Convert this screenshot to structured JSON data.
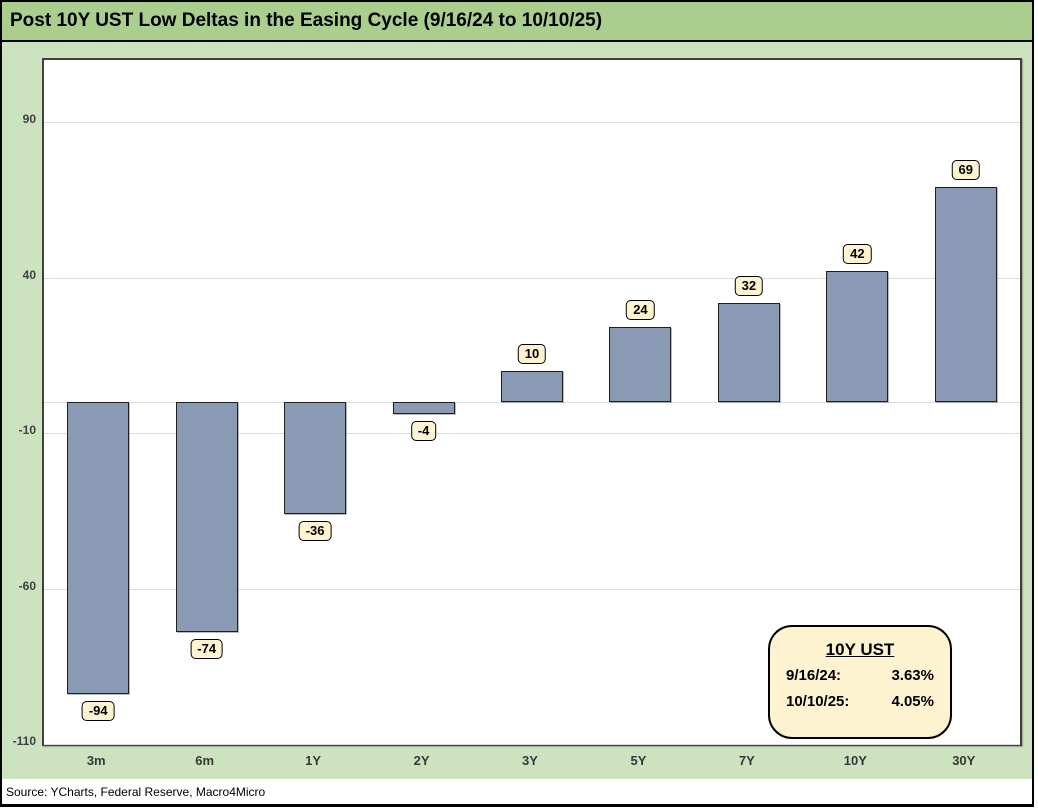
{
  "header": {
    "title": "Post 10Y UST Low Deltas in the Easing Cycle (9/16/24 to 10/10/25)"
  },
  "chart_data": {
    "type": "bar",
    "title": "Post 10Y UST Low Deltas in the Easing Cycle (9/16/24 to 10/10/25)",
    "categories": [
      "3m",
      "6m",
      "1Y",
      "2Y",
      "3Y",
      "5Y",
      "7Y",
      "10Y",
      "30Y"
    ],
    "values": [
      -94,
      -74,
      -36,
      -4,
      10,
      24,
      32,
      42,
      69
    ],
    "xlabel": "",
    "ylabel": "",
    "ylim": [
      -110,
      110
    ],
    "yticks": [
      90,
      40,
      -10,
      -60,
      -110
    ],
    "grid": true,
    "legend": "none",
    "bar_color": "#8a9ab4",
    "bar_border": "#1f1f1f",
    "label_bg": "#fdf3d1",
    "gridline_color": "#dcdcdc"
  },
  "annotation": {
    "title": "10Y UST",
    "rows": [
      {
        "label": "9/16/24:",
        "value": "3.63%"
      },
      {
        "label": "10/10/25:",
        "value": "4.05%"
      }
    ]
  },
  "footer": {
    "source": "Source: YCharts, Federal Reserve, Macro4Micro"
  },
  "colors": {
    "title_bar": "#a9ce8e",
    "background": "#cde3c0",
    "plot_bg": "#ffffff",
    "annotation_bg": "#fdf3d1"
  }
}
